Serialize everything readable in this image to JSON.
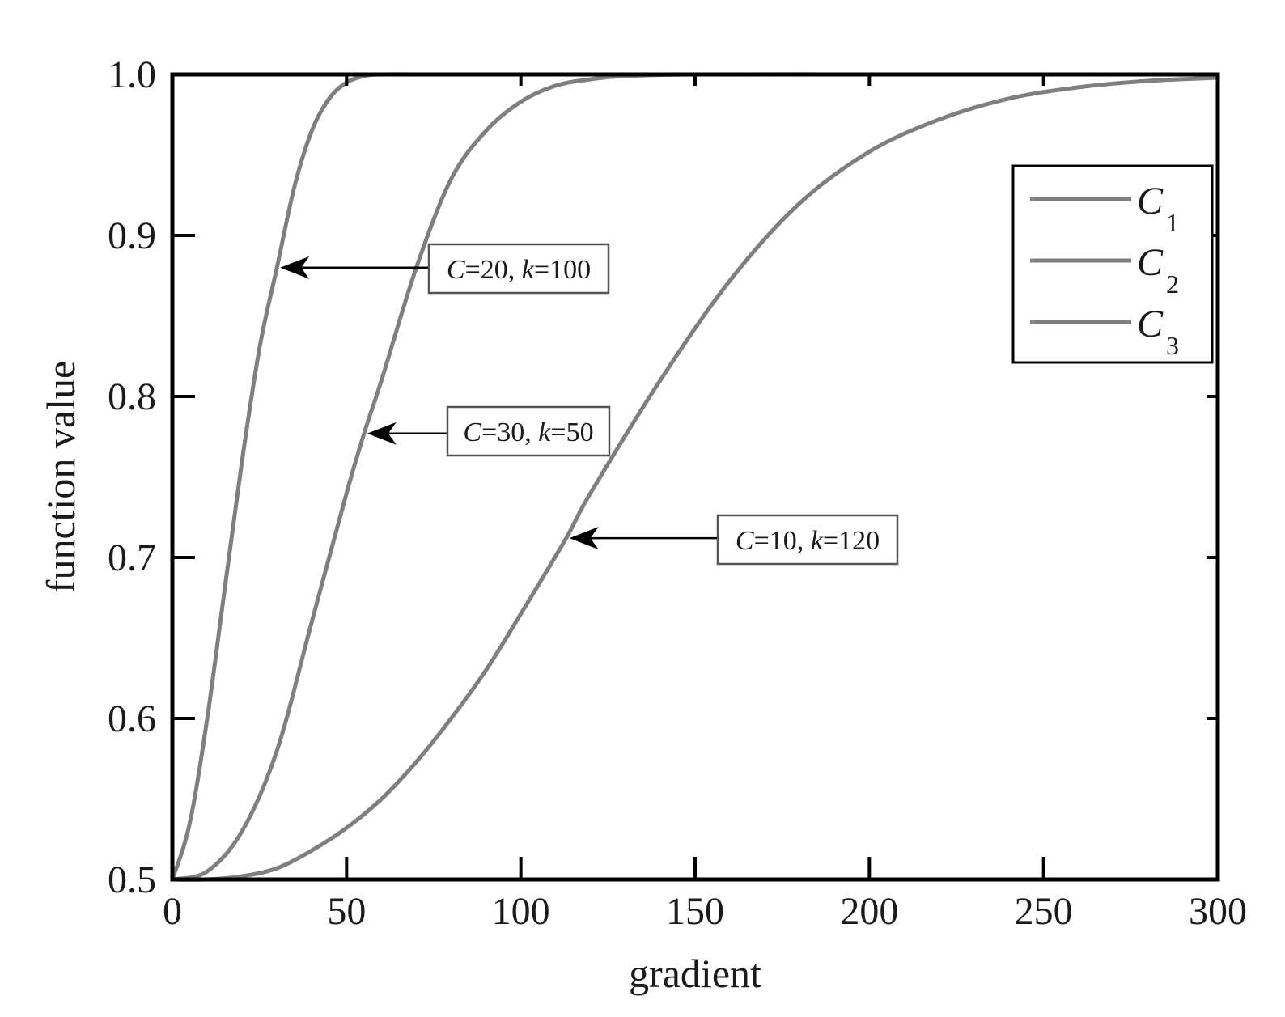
{
  "chart_data": {
    "type": "line",
    "title": "",
    "xlabel": "gradient",
    "ylabel": "function value",
    "xlim": [
      0,
      300
    ],
    "ylim": [
      0.5,
      1.0
    ],
    "xticks": [
      "0",
      "50",
      "100",
      "150",
      "200",
      "250",
      "300"
    ],
    "yticks": [
      "0.5",
      "0.6",
      "0.7",
      "0.8",
      "0.9",
      "1.0"
    ],
    "grid": false,
    "legend_position": "top-right",
    "line_color": "#7f7f7f",
    "series": [
      {
        "name": "C1",
        "legend_letter": "C",
        "legend_sub": "1",
        "annotation": {
          "C": "20",
          "k": "100",
          "point": [
            30,
            0.88
          ]
        },
        "x": [
          0,
          5,
          10,
          15,
          20,
          25,
          30,
          35,
          40,
          45,
          50,
          55,
          60,
          70,
          80,
          100,
          150,
          200,
          250,
          300
        ],
        "y": [
          0.5,
          0.535,
          0.6,
          0.68,
          0.76,
          0.83,
          0.88,
          0.93,
          0.965,
          0.985,
          0.995,
          0.999,
          1.0,
          1.0,
          1.0,
          1.0,
          1.0,
          1.0,
          1.0,
          1.0
        ]
      },
      {
        "name": "C2",
        "legend_letter": "C",
        "legend_sub": "2",
        "annotation": {
          "C": "30",
          "k": "50",
          "point": [
            55,
            0.777
          ]
        },
        "x": [
          0,
          10,
          20,
          30,
          40,
          50,
          55,
          60,
          70,
          80,
          90,
          100,
          110,
          120,
          130,
          150,
          200,
          250,
          300
        ],
        "y": [
          0.5,
          0.505,
          0.53,
          0.58,
          0.66,
          0.74,
          0.777,
          0.81,
          0.88,
          0.935,
          0.965,
          0.983,
          0.993,
          0.997,
          0.999,
          1.0,
          1.0,
          1.0,
          1.0
        ]
      },
      {
        "name": "C3",
        "legend_letter": "C",
        "legend_sub": "3",
        "annotation": {
          "C": "10",
          "k": "120",
          "point": [
            113,
            0.712
          ]
        },
        "x": [
          0,
          10,
          20,
          30,
          40,
          50,
          60,
          70,
          80,
          90,
          100,
          113,
          120,
          140,
          160,
          180,
          200,
          220,
          240,
          260,
          280,
          300
        ],
        "y": [
          0.5,
          0.5,
          0.502,
          0.507,
          0.518,
          0.532,
          0.55,
          0.573,
          0.6,
          0.63,
          0.665,
          0.712,
          0.74,
          0.81,
          0.872,
          0.92,
          0.952,
          0.972,
          0.985,
          0.992,
          0.996,
          0.998
        ]
      }
    ]
  }
}
